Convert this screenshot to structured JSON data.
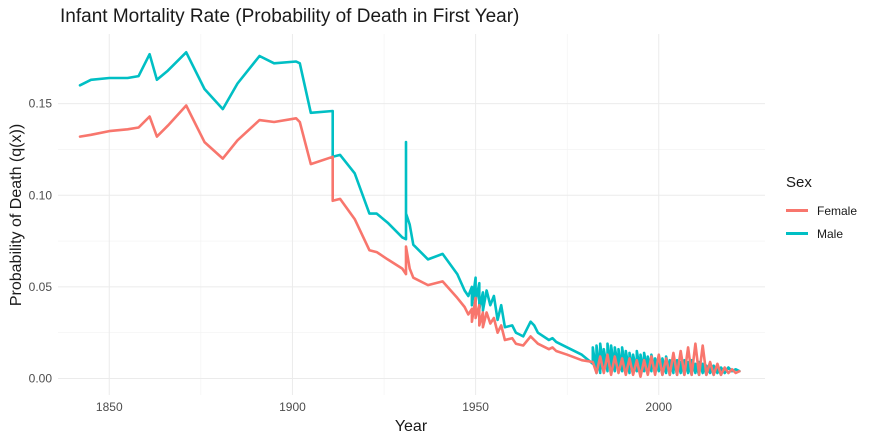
{
  "chart_data": {
    "type": "line",
    "title": "Infant Mortality Rate (Probability of Death in First Year)",
    "xlabel": "Year",
    "ylabel": "Probability of Death (q(x))",
    "xlim": [
      1836,
      2029
    ],
    "ylim": [
      -0.009,
      0.188
    ],
    "xticks": [
      1850,
      1900,
      1950,
      2000
    ],
    "xtick_labels": [
      "1850",
      "1900",
      "1950",
      "2000"
    ],
    "yticks": [
      0,
      0.05,
      0.1,
      0.15
    ],
    "ytick_labels": [
      "0.00",
      "0.05",
      "0.10",
      "0.15"
    ],
    "grid": true,
    "legend": {
      "title": "Sex",
      "position": "right"
    },
    "series": [
      {
        "name": "Male",
        "color": "#00BFC4",
        "points": [
          [
            1842,
            0.16
          ],
          [
            1845,
            0.163
          ],
          [
            1850,
            0.164
          ],
          [
            1855,
            0.164
          ],
          [
            1858,
            0.165
          ],
          [
            1861,
            0.177
          ],
          [
            1863,
            0.163
          ],
          [
            1866,
            0.168
          ],
          [
            1871,
            0.178
          ],
          [
            1876,
            0.158
          ],
          [
            1881,
            0.147
          ],
          [
            1885,
            0.161
          ],
          [
            1891,
            0.176
          ],
          [
            1895,
            0.172
          ],
          [
            1901,
            0.173
          ],
          [
            1902,
            0.172
          ],
          [
            1905,
            0.145
          ],
          [
            1911,
            0.146
          ],
          [
            1911,
            0.121
          ],
          [
            1913,
            0.122
          ],
          [
            1917,
            0.112
          ],
          [
            1921,
            0.09
          ],
          [
            1923,
            0.09
          ],
          [
            1926,
            0.085
          ],
          [
            1930,
            0.077
          ],
          [
            1931,
            0.076
          ],
          [
            1931,
            0.129
          ],
          [
            1931,
            0.09
          ],
          [
            1932,
            0.084
          ],
          [
            1933,
            0.073
          ],
          [
            1937,
            0.065
          ],
          [
            1941,
            0.068
          ],
          [
            1945,
            0.057
          ],
          [
            1947,
            0.048
          ],
          [
            1948,
            0.045
          ],
          [
            1949,
            0.05
          ],
          [
            1949,
            0.04
          ],
          [
            1950,
            0.055
          ],
          [
            1950,
            0.042
          ],
          [
            1951,
            0.052
          ],
          [
            1951,
            0.038
          ],
          [
            1952,
            0.047
          ],
          [
            1952,
            0.037
          ],
          [
            1953,
            0.048
          ],
          [
            1954,
            0.04
          ],
          [
            1955,
            0.045
          ],
          [
            1956,
            0.032
          ],
          [
            1957,
            0.04
          ],
          [
            1958,
            0.028
          ],
          [
            1960,
            0.029
          ],
          [
            1961,
            0.025
          ],
          [
            1962,
            0.024
          ],
          [
            1963,
            0.023
          ],
          [
            1965,
            0.031
          ],
          [
            1966,
            0.029
          ],
          [
            1967,
            0.025
          ],
          [
            1970,
            0.021
          ],
          [
            1971,
            0.022
          ],
          [
            1972,
            0.02
          ],
          [
            1975,
            0.017
          ],
          [
            1979,
            0.013
          ],
          [
            1982,
            0.008
          ],
          [
            1982,
            0.017
          ],
          [
            1983,
            0.003
          ],
          [
            1983,
            0.018
          ],
          [
            1984,
            0.003
          ],
          [
            1984,
            0.019
          ],
          [
            1985,
            0.004
          ],
          [
            1985,
            0.016
          ],
          [
            1986,
            0.004
          ],
          [
            1986,
            0.019
          ],
          [
            1987,
            0.005
          ],
          [
            1987,
            0.018
          ],
          [
            1988,
            0.004
          ],
          [
            1988,
            0.017
          ],
          [
            1989,
            0.005
          ],
          [
            1989,
            0.016
          ],
          [
            1990,
            0.004
          ],
          [
            1990,
            0.017
          ],
          [
            1991,
            0.004
          ],
          [
            1991,
            0.015
          ],
          [
            1992,
            0.003
          ],
          [
            1992,
            0.014
          ],
          [
            1993,
            0.004
          ],
          [
            1993,
            0.013
          ],
          [
            1994,
            0.004
          ],
          [
            1994,
            0.015
          ],
          [
            1995,
            0.003
          ],
          [
            1995,
            0.013
          ],
          [
            1996,
            0.004
          ],
          [
            1996,
            0.014
          ],
          [
            1997,
            0.003
          ],
          [
            1997,
            0.012
          ],
          [
            1998,
            0.004
          ],
          [
            1998,
            0.013
          ],
          [
            1999,
            0.003
          ],
          [
            1999,
            0.011
          ],
          [
            2000,
            0.004
          ],
          [
            2000,
            0.012
          ],
          [
            2001,
            0.002
          ],
          [
            2001,
            0.011
          ],
          [
            2002,
            0.003
          ],
          [
            2002,
            0.012
          ],
          [
            2003,
            0.002
          ],
          [
            2003,
            0.01
          ],
          [
            2004,
            0.003
          ],
          [
            2004,
            0.011
          ],
          [
            2005,
            0.002
          ],
          [
            2005,
            0.01
          ],
          [
            2006,
            0.003
          ],
          [
            2006,
            0.009
          ],
          [
            2007,
            0.002
          ],
          [
            2007,
            0.01
          ],
          [
            2008,
            0.003
          ],
          [
            2008,
            0.009
          ],
          [
            2009,
            0.002
          ],
          [
            2009,
            0.01
          ],
          [
            2010,
            0.003
          ],
          [
            2010,
            0.008
          ],
          [
            2011,
            0.002
          ],
          [
            2011,
            0.009
          ],
          [
            2012,
            0.003
          ],
          [
            2012,
            0.008
          ],
          [
            2013,
            0.002
          ],
          [
            2013,
            0.007
          ],
          [
            2014,
            0.003
          ],
          [
            2014,
            0.008
          ],
          [
            2015,
            0.002
          ],
          [
            2015,
            0.007
          ],
          [
            2016,
            0.003
          ],
          [
            2016,
            0.007
          ],
          [
            2017,
            0.002
          ],
          [
            2017,
            0.006
          ],
          [
            2018,
            0.003
          ],
          [
            2019,
            0.006
          ],
          [
            2020,
            0.004
          ],
          [
            2021,
            0.005
          ],
          [
            2022,
            0.004
          ]
        ]
      },
      {
        "name": "Female",
        "color": "#F8766D",
        "points": [
          [
            1842,
            0.132
          ],
          [
            1845,
            0.133
          ],
          [
            1850,
            0.135
          ],
          [
            1855,
            0.136
          ],
          [
            1858,
            0.137
          ],
          [
            1861,
            0.143
          ],
          [
            1863,
            0.132
          ],
          [
            1866,
            0.138
          ],
          [
            1871,
            0.149
          ],
          [
            1876,
            0.129
          ],
          [
            1881,
            0.12
          ],
          [
            1885,
            0.13
          ],
          [
            1891,
            0.141
          ],
          [
            1895,
            0.14
          ],
          [
            1901,
            0.142
          ],
          [
            1902,
            0.14
          ],
          [
            1905,
            0.117
          ],
          [
            1911,
            0.121
          ],
          [
            1911,
            0.097
          ],
          [
            1913,
            0.098
          ],
          [
            1917,
            0.087
          ],
          [
            1921,
            0.07
          ],
          [
            1923,
            0.069
          ],
          [
            1926,
            0.065
          ],
          [
            1930,
            0.06
          ],
          [
            1931,
            0.057
          ],
          [
            1931,
            0.072
          ],
          [
            1932,
            0.06
          ],
          [
            1933,
            0.055
          ],
          [
            1937,
            0.051
          ],
          [
            1941,
            0.053
          ],
          [
            1945,
            0.044
          ],
          [
            1947,
            0.039
          ],
          [
            1948,
            0.035
          ],
          [
            1949,
            0.038
          ],
          [
            1949,
            0.031
          ],
          [
            1950,
            0.044
          ],
          [
            1950,
            0.033
          ],
          [
            1951,
            0.04
          ],
          [
            1951,
            0.029
          ],
          [
            1952,
            0.036
          ],
          [
            1952,
            0.028
          ],
          [
            1953,
            0.036
          ],
          [
            1954,
            0.03
          ],
          [
            1955,
            0.033
          ],
          [
            1956,
            0.025
          ],
          [
            1957,
            0.029
          ],
          [
            1958,
            0.021
          ],
          [
            1960,
            0.022
          ],
          [
            1961,
            0.019
          ],
          [
            1963,
            0.018
          ],
          [
            1965,
            0.023
          ],
          [
            1966,
            0.021
          ],
          [
            1967,
            0.019
          ],
          [
            1970,
            0.016
          ],
          [
            1971,
            0.017
          ],
          [
            1972,
            0.015
          ],
          [
            1975,
            0.013
          ],
          [
            1979,
            0.01
          ],
          [
            1982,
            0.009
          ],
          [
            1983,
            0.003
          ],
          [
            1984,
            0.012
          ],
          [
            1985,
            0.003
          ],
          [
            1986,
            0.013
          ],
          [
            1987,
            0.002
          ],
          [
            1988,
            0.012
          ],
          [
            1989,
            0.003
          ],
          [
            1990,
            0.011
          ],
          [
            1991,
            0.002
          ],
          [
            1992,
            0.011
          ],
          [
            1993,
            0.002
          ],
          [
            1994,
            0.01
          ],
          [
            1995,
            0.001
          ],
          [
            1996,
            0.01
          ],
          [
            1997,
            0.002
          ],
          [
            1998,
            0.012
          ],
          [
            1999,
            0.002
          ],
          [
            2000,
            0.013
          ],
          [
            2001,
            0.002
          ],
          [
            2002,
            0.011
          ],
          [
            2003,
            0.002
          ],
          [
            2004,
            0.014
          ],
          [
            2005,
            0.002
          ],
          [
            2006,
            0.015
          ],
          [
            2007,
            0.002
          ],
          [
            2008,
            0.017
          ],
          [
            2009,
            0.002
          ],
          [
            2010,
            0.019
          ],
          [
            2011,
            0.002
          ],
          [
            2012,
            0.018
          ],
          [
            2013,
            0.002
          ],
          [
            2014,
            0.009
          ],
          [
            2015,
            0.002
          ],
          [
            2016,
            0.008
          ],
          [
            2017,
            0.002
          ],
          [
            2018,
            0.006
          ],
          [
            2019,
            0.003
          ],
          [
            2020,
            0.005
          ],
          [
            2021,
            0.003
          ],
          [
            2022,
            0.004
          ]
        ]
      }
    ]
  }
}
